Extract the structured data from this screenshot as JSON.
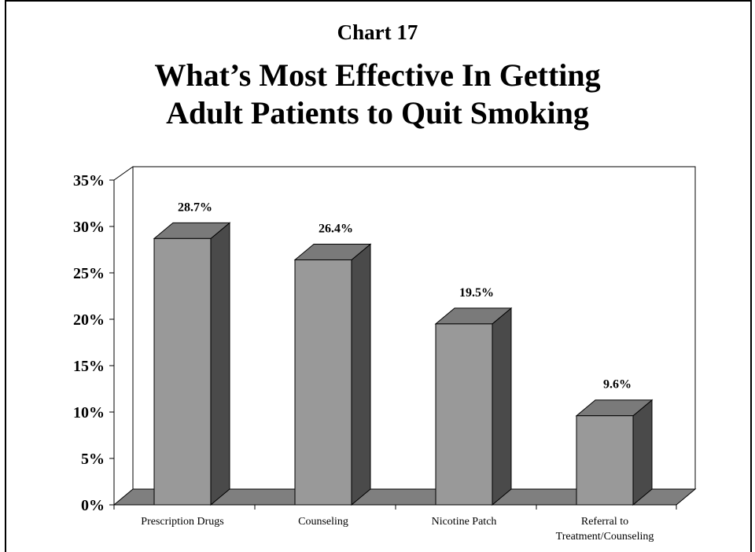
{
  "header": {
    "chart_number": "Chart 17",
    "title_line1": "What’s Most Effective In Getting",
    "title_line2": "Adult Patients to Quit Smoking"
  },
  "colors": {
    "bar_front": "#999999",
    "bar_top": "#7a7a7a",
    "bar_side": "#4a4a4a",
    "floor": "#7f7f7f",
    "axis": "#000000",
    "background": "#ffffff"
  },
  "chart_data": {
    "type": "bar",
    "title": "What’s Most Effective In Getting Adult Patients to Quit Smoking",
    "categories": [
      [
        "Prescription Drugs"
      ],
      [
        "Counseling"
      ],
      [
        "Nicotine Patch"
      ],
      [
        "Referral to",
        "Treatment/Counseling"
      ]
    ],
    "values": [
      28.7,
      26.4,
      19.5,
      9.6
    ],
    "data_labels": [
      "28.7%",
      "26.4%",
      "19.5%",
      "9.6%"
    ],
    "y_ticks": [
      "0%",
      "5%",
      "10%",
      "15%",
      "20%",
      "25%",
      "30%",
      "35%"
    ],
    "ylim": [
      0,
      35
    ],
    "grid": false,
    "three_d": true,
    "legend": "none"
  }
}
